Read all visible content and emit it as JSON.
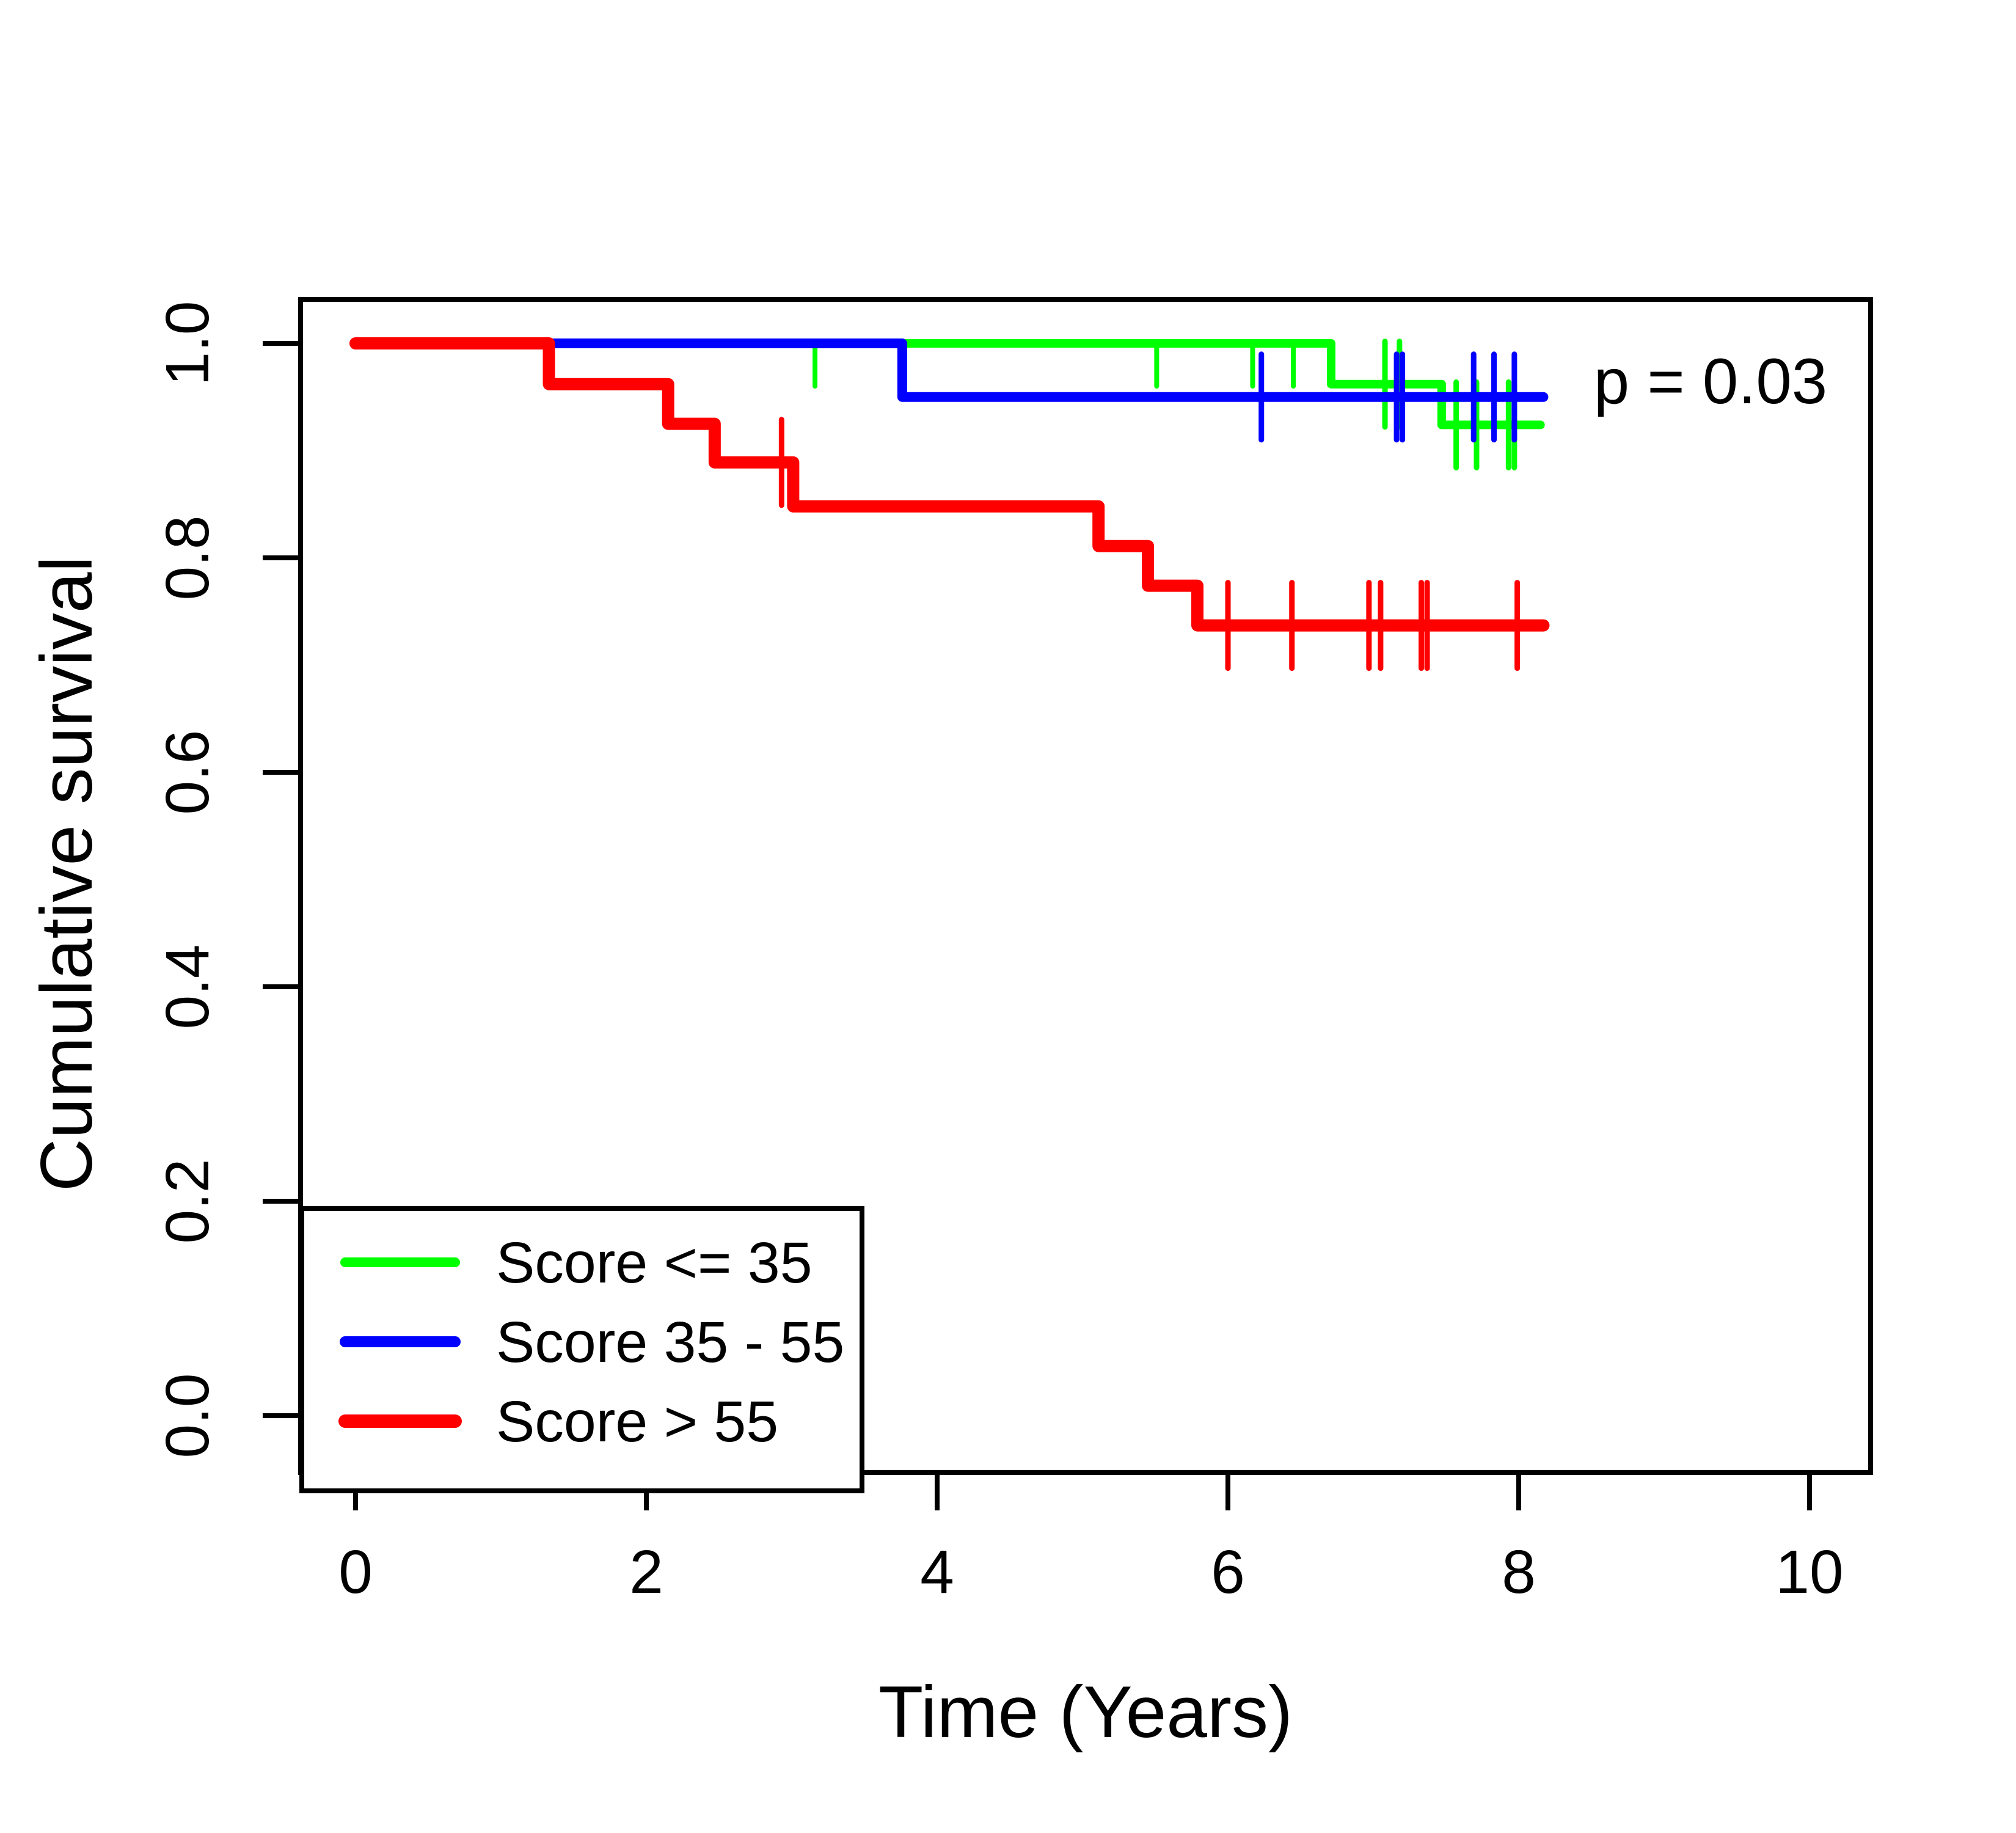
{
  "chart_data": {
    "type": "line",
    "subtype": "kaplan-meier-step-function",
    "title": "",
    "xlabel": "Time (Years)",
    "ylabel": "Cumulative survival",
    "annotation": {
      "text": "p = 0.03",
      "x": 9.32,
      "y": 0.944
    },
    "xlim": [
      -0.4,
      10.42
    ],
    "ylim": [
      -0.053,
      1.041
    ],
    "grid": "off",
    "legend_position": "bottom-left",
    "x_ticks": [
      {
        "t": 0,
        "label": "0"
      },
      {
        "t": 2,
        "label": "2"
      },
      {
        "t": 4,
        "label": "4"
      },
      {
        "t": 6,
        "label": "6"
      },
      {
        "t": 8,
        "label": "8"
      },
      {
        "t": 10,
        "label": "10"
      }
    ],
    "y_ticks": [
      {
        "v": 0.0,
        "label": "0.0"
      },
      {
        "v": 0.2,
        "label": "0.2"
      },
      {
        "v": 0.4,
        "label": "0.4"
      },
      {
        "v": 0.6,
        "label": "0.6"
      },
      {
        "v": 0.8,
        "label": "0.8"
      },
      {
        "v": 1.0,
        "label": "1.0"
      }
    ],
    "series": [
      {
        "id": "score-le-35",
        "name": "Score <= 35",
        "color": "#00FF00",
        "steps": [
          [
            0,
            1.0
          ],
          [
            6.71,
            0.962
          ],
          [
            7.47,
            0.924
          ]
        ],
        "end_time": 8.15,
        "censored": [
          [
            7.08,
            0.962
          ],
          [
            7.18,
            0.962
          ],
          [
            7.57,
            0.924
          ],
          [
            7.71,
            0.924
          ],
          [
            7.93,
            0.924
          ],
          [
            7.97,
            0.924
          ]
        ],
        "censored_half_down": [
          [
            3.16,
            1.0
          ],
          [
            5.51,
            1.0
          ],
          [
            6.17,
            1.0
          ],
          [
            6.45,
            1.0
          ]
        ]
      },
      {
        "id": "score-35-55",
        "name": "Score 35 - 55",
        "color": "#0000FF",
        "steps": [
          [
            0,
            1.0
          ],
          [
            3.76,
            0.95
          ]
        ],
        "end_time": 8.17,
        "censored": [
          [
            6.23,
            0.95
          ],
          [
            7.16,
            0.95
          ],
          [
            7.2,
            0.95
          ],
          [
            7.69,
            0.95
          ],
          [
            7.83,
            0.95
          ],
          [
            7.97,
            0.95
          ]
        ],
        "censored_half_down": []
      },
      {
        "id": "score-gt-55",
        "name": "Score > 55",
        "color": "#FF0000",
        "steps": [
          [
            0,
            1.0
          ],
          [
            1.33,
            0.962
          ],
          [
            2.15,
            0.925
          ],
          [
            2.47,
            0.889
          ],
          [
            3.01,
            0.848
          ],
          [
            5.11,
            0.811
          ],
          [
            5.45,
            0.774
          ],
          [
            5.79,
            0.737
          ]
        ],
        "end_time": 8.17,
        "censored": [
          [
            2.93,
            0.889
          ],
          [
            6.0,
            0.737
          ],
          [
            6.44,
            0.737
          ],
          [
            6.97,
            0.737
          ],
          [
            7.05,
            0.737
          ],
          [
            7.33,
            0.737
          ],
          [
            7.37,
            0.737
          ],
          [
            7.99,
            0.737
          ]
        ],
        "censored_half_down": []
      }
    ],
    "colors": {
      "axis": "#000000",
      "background": "#FFFFFF",
      "group_le_35": "#00FF00",
      "group_35_55": "#0000FF",
      "group_gt_55": "#FF0000"
    }
  }
}
